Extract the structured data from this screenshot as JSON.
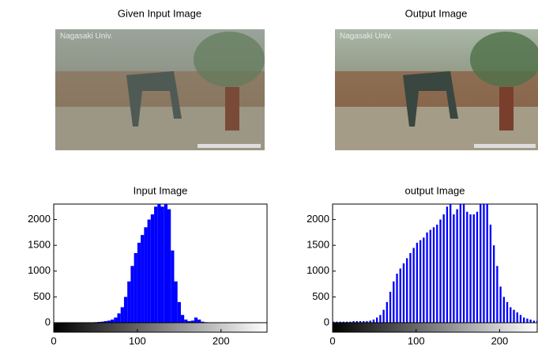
{
  "images": [
    {
      "title": "Given Input Image",
      "watermark": "Nagasaki Univ."
    },
    {
      "title": "Output Image",
      "watermark": "Nagasaki Univ."
    }
  ],
  "chart_data": [
    {
      "type": "histogram",
      "title": "Input Image",
      "color": "#0000ff",
      "x": [
        0,
        4,
        8,
        12,
        16,
        20,
        24,
        28,
        32,
        36,
        40,
        44,
        48,
        52,
        56,
        60,
        64,
        68,
        72,
        76,
        80,
        84,
        88,
        92,
        96,
        100,
        104,
        108,
        112,
        116,
        120,
        124,
        128,
        132,
        136,
        140,
        144,
        148,
        152,
        156,
        160,
        164,
        168,
        172,
        176,
        180,
        184,
        188,
        192,
        196,
        200,
        204,
        208,
        212,
        216,
        220,
        224,
        228,
        232,
        236,
        240,
        244,
        248,
        252
      ],
      "values": [
        0,
        0,
        0,
        0,
        0,
        0,
        0,
        0,
        0,
        0,
        0,
        5,
        10,
        15,
        20,
        30,
        40,
        60,
        100,
        180,
        300,
        500,
        800,
        1100,
        1350,
        1550,
        1700,
        1850,
        2000,
        2100,
        2250,
        2400,
        2250,
        2300,
        2200,
        1400,
        800,
        400,
        150,
        60,
        30,
        40,
        100,
        60,
        20,
        10,
        5,
        0,
        0,
        0,
        0,
        0,
        0,
        0,
        0,
        0,
        0,
        0,
        0,
        0,
        0,
        0,
        0,
        0
      ],
      "xlim": [
        0,
        255
      ],
      "xticks": [
        0,
        100,
        200
      ],
      "ylim": [
        0,
        2300
      ],
      "yticks": [
        0,
        500,
        1000,
        1500,
        2000
      ]
    },
    {
      "type": "histogram",
      "title": "output Image",
      "color": "#0000ff",
      "x": [
        0,
        4,
        8,
        12,
        16,
        20,
        24,
        28,
        32,
        36,
        40,
        44,
        48,
        52,
        56,
        60,
        64,
        68,
        72,
        76,
        80,
        84,
        88,
        92,
        96,
        100,
        104,
        108,
        112,
        116,
        120,
        124,
        128,
        132,
        136,
        140,
        144,
        148,
        152,
        156,
        160,
        164,
        168,
        172,
        176,
        180,
        184,
        188,
        192,
        196,
        200,
        204,
        208,
        212,
        216,
        220,
        224,
        228,
        232,
        236,
        240,
        244
      ],
      "values": [
        20,
        20,
        20,
        20,
        20,
        20,
        30,
        30,
        30,
        30,
        30,
        40,
        60,
        100,
        150,
        250,
        400,
        600,
        800,
        950,
        1050,
        1150,
        1250,
        1350,
        1450,
        1550,
        1600,
        1650,
        1750,
        1800,
        1850,
        1900,
        2000,
        2100,
        2250,
        2400,
        2100,
        2200,
        2400,
        2300,
        2150,
        2100,
        2100,
        2150,
        2300,
        2400,
        2300,
        1900,
        1500,
        1100,
        700,
        500,
        400,
        300,
        250,
        200,
        150,
        100,
        80,
        60,
        40,
        40
      ],
      "xlim": [
        0,
        245
      ],
      "xticks": [
        0,
        100,
        200
      ],
      "ylim": [
        0,
        2300
      ],
      "yticks": [
        0,
        500,
        1000,
        1500,
        2000
      ]
    }
  ]
}
